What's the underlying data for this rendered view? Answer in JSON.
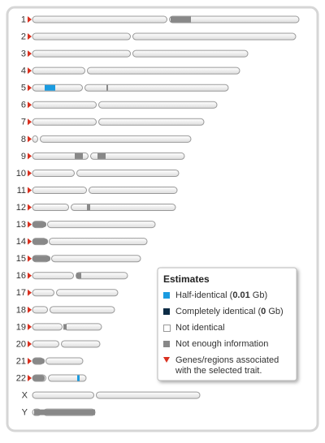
{
  "chromosomes": [
    {
      "label": "1"
    },
    {
      "label": "2"
    },
    {
      "label": "3"
    },
    {
      "label": "4"
    },
    {
      "label": "5"
    },
    {
      "label": "6"
    },
    {
      "label": "7"
    },
    {
      "label": "8"
    },
    {
      "label": "9"
    },
    {
      "label": "10"
    },
    {
      "label": "11"
    },
    {
      "label": "12"
    },
    {
      "label": "13"
    },
    {
      "label": "14"
    },
    {
      "label": "15"
    },
    {
      "label": "16"
    },
    {
      "label": "17"
    },
    {
      "label": "18"
    },
    {
      "label": "19"
    },
    {
      "label": "20"
    },
    {
      "label": "21"
    },
    {
      "label": "22"
    },
    {
      "label": "X"
    },
    {
      "label": "Y"
    }
  ],
  "legend": {
    "title": "Estimates",
    "items": [
      {
        "parts": [
          "Half-identical (",
          "0.01",
          " Gb)"
        ]
      },
      {
        "parts": [
          "Completely identical (",
          "0",
          " Gb)"
        ]
      },
      {
        "lines": [
          "Not identical"
        ]
      },
      {
        "lines": [
          "Not enough information"
        ]
      },
      {
        "lines": [
          "Genes/regions associated",
          "with the selected trait."
        ]
      }
    ]
  }
}
